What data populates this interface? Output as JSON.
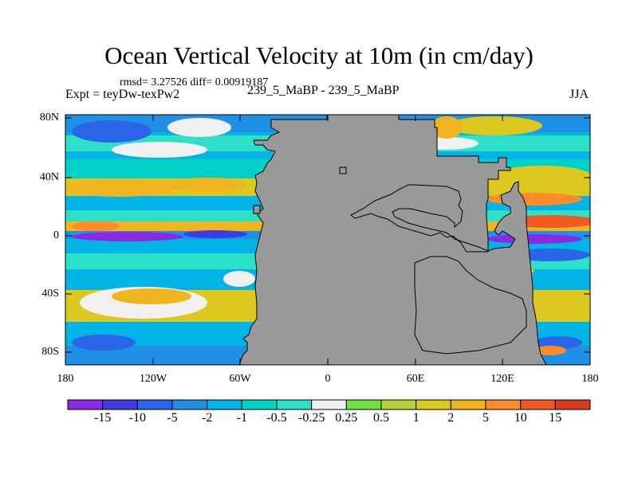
{
  "title": "Ocean Vertical Velocity at 10m (in cm/day)",
  "stats": "rmsd= 3.27526 diff= 0.00919187",
  "left_label": "Expt = teyDw-texPw2",
  "center_label": "239_5_MaBP - 239_5_MaBP",
  "right_label": "JJA",
  "lat_ticks": [
    "80N",
    "40N",
    "0",
    "40S",
    "80S"
  ],
  "lon_ticks": [
    "180",
    "120W",
    "60W",
    "0",
    "60E",
    "120E",
    "180"
  ],
  "colorbar": {
    "labels": [
      "-15",
      "-10",
      "-5",
      "-2",
      "-1",
      "-0.5",
      "-0.25",
      "0.25",
      "0.5",
      "1",
      "2",
      "5",
      "10",
      "15"
    ],
    "colors": [
      "#8a2be2",
      "#3c3ce0",
      "#2a64e8",
      "#1e90e6",
      "#00b4e6",
      "#00d2c8",
      "#2ee0c8",
      "#f0f0f0",
      "#70e040",
      "#b4d23c",
      "#dcc81e",
      "#f0b41e",
      "#ff8c28",
      "#f05a1e",
      "#dc3c1e"
    ]
  },
  "land_color": "#999999"
}
